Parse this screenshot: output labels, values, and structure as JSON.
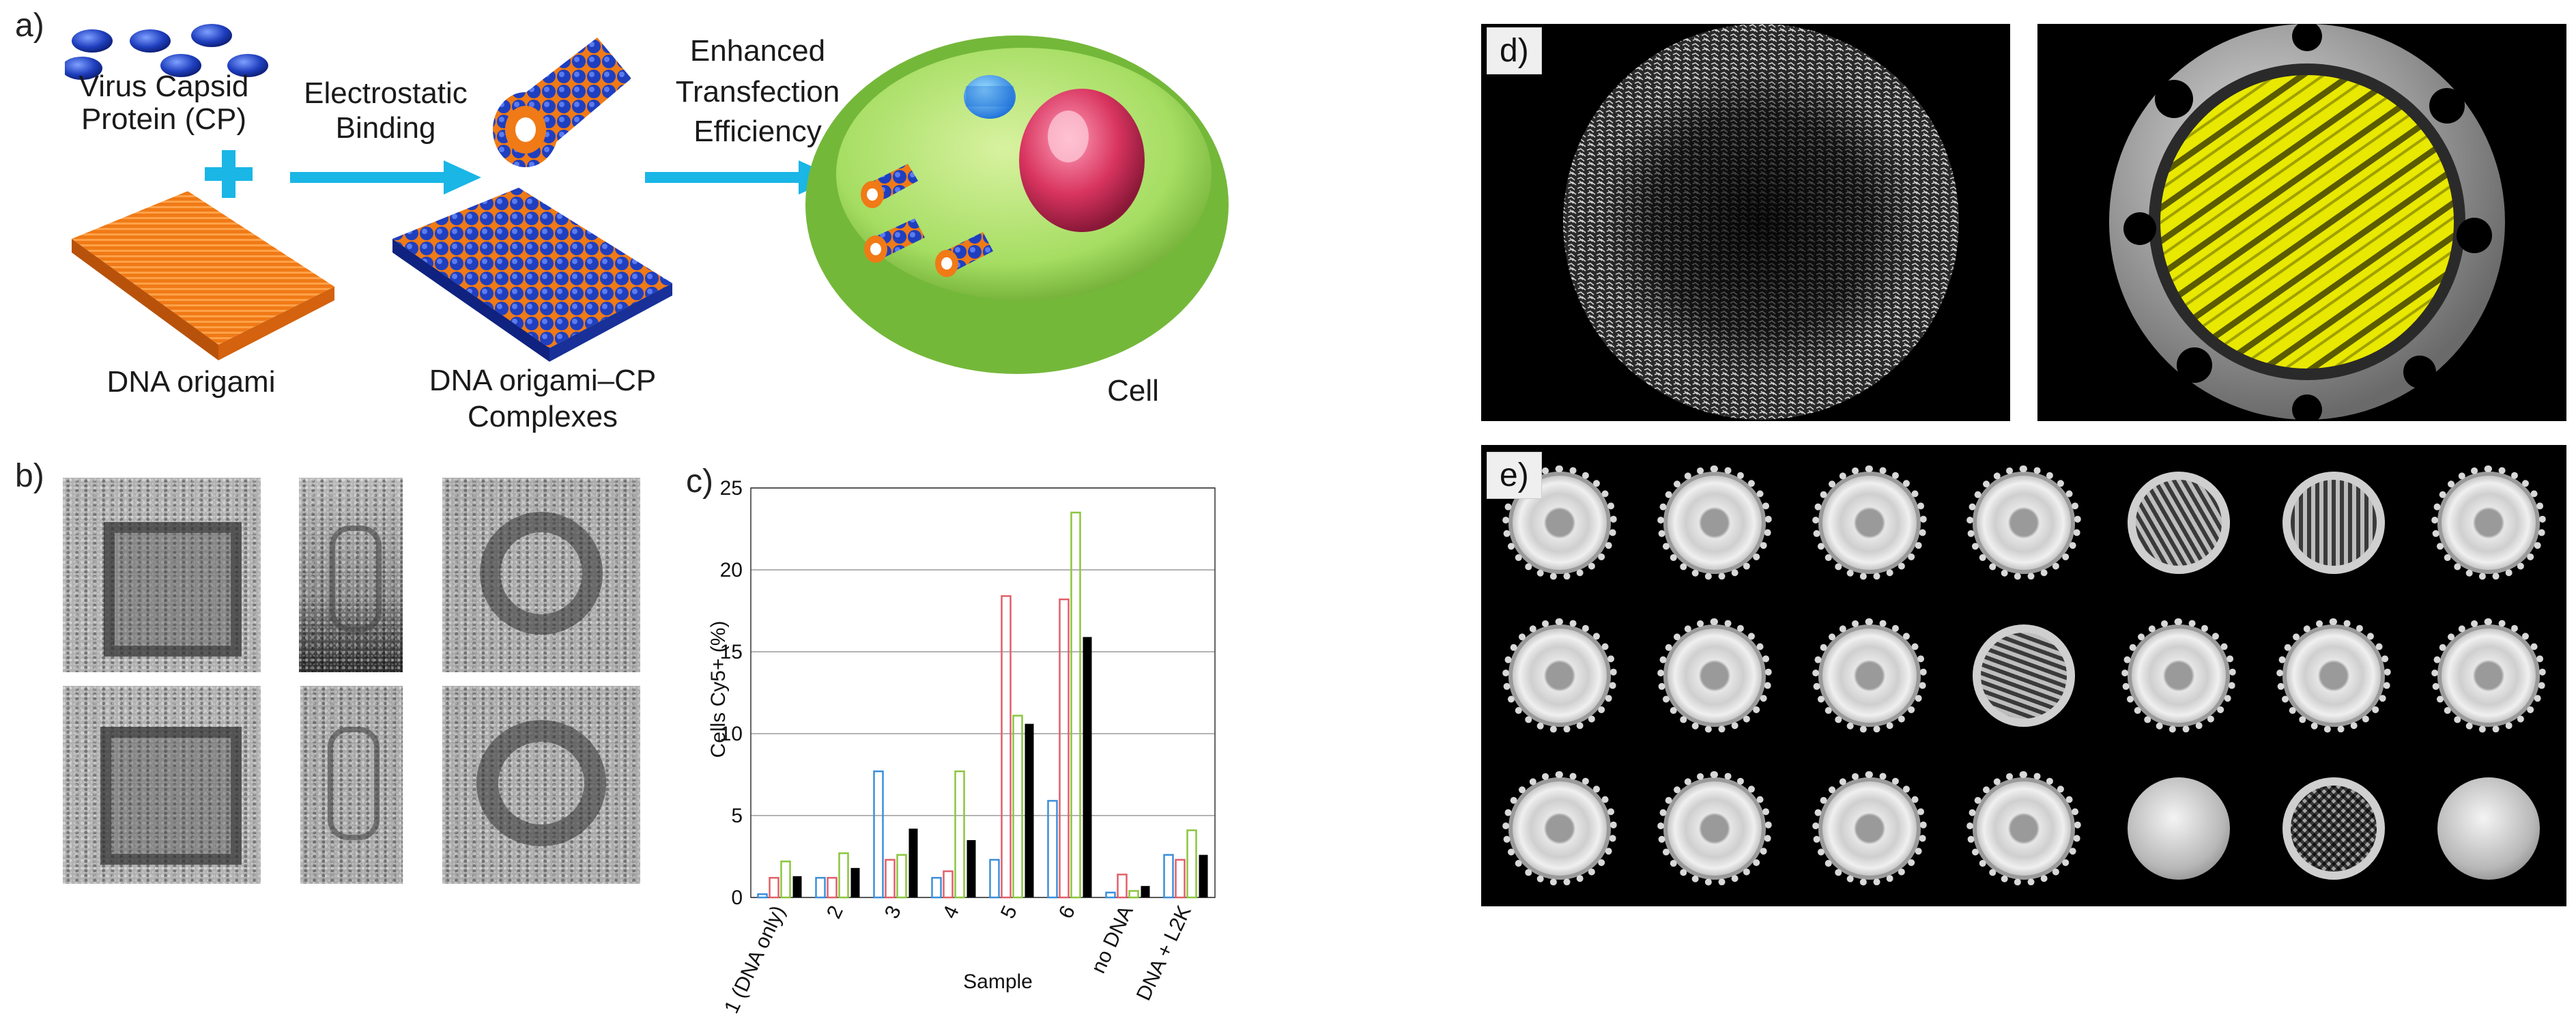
{
  "panel_labels": {
    "a": "a)",
    "b": "b)",
    "c": "c)",
    "d": "d)",
    "e": "e)"
  },
  "panel_a": {
    "cp_label_line1": "Virus Capsid",
    "cp_label_line2": "Protein (CP)",
    "step1_line1": "Electrostatic",
    "step1_line2": "Binding",
    "step2_line1": "Enhanced",
    "step2_line2": "Transfection",
    "step2_line3": "Efficiency",
    "origami_label": "DNA origami",
    "complex_line1": "DNA origami–CP",
    "complex_line2": "Complexes",
    "cell_label": "Cell"
  },
  "colors": {
    "capsid_blue": "#1f3fbf",
    "origami_orange": "#f07a16",
    "arrow_cyan": "#19b6e6",
    "cell_green": "#8fd14f",
    "nucleus_pink": "#d8345f",
    "series_blue": "#3b8fd9",
    "series_red": "#e0606a",
    "series_green": "#8cc63f",
    "series_black": "#000000",
    "density_yellow": "#e8e800"
  },
  "chart_data": {
    "type": "bar",
    "ylabel": "Cells Cy5+ (%)",
    "xlabel": "Sample",
    "ylim": [
      0,
      25
    ],
    "yticks": [
      0,
      5,
      10,
      15,
      20,
      25
    ],
    "grid": true,
    "categories": [
      "1 (DNA only)",
      "2",
      "3",
      "4",
      "5",
      "6",
      "no DNA",
      "DNA + L2K"
    ],
    "series": [
      {
        "color": "#3b8fd9",
        "fill": "none",
        "values": [
          0.2,
          1.2,
          7.7,
          1.2,
          2.3,
          5.9,
          0.3,
          2.6
        ]
      },
      {
        "color": "#e0606a",
        "fill": "none",
        "values": [
          1.2,
          1.2,
          2.3,
          1.6,
          18.4,
          18.2,
          1.4,
          2.3
        ]
      },
      {
        "color": "#8cc63f",
        "fill": "none",
        "values": [
          2.2,
          2.7,
          2.6,
          7.7,
          11.1,
          23.5,
          0.4,
          4.1
        ]
      },
      {
        "color": "#000000",
        "fill": "solid",
        "values": [
          1.3,
          1.8,
          4.2,
          3.5,
          10.6,
          15.9,
          0.7,
          2.6
        ]
      }
    ]
  }
}
